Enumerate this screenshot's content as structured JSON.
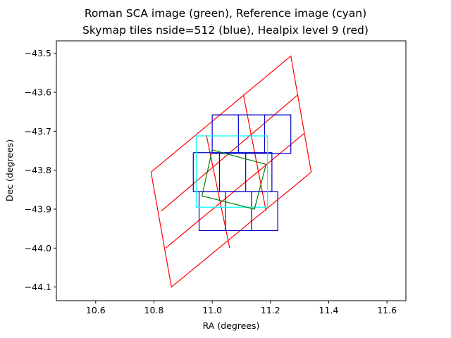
{
  "chart_data": {
    "type": "line",
    "title_line1": "Roman SCA image (green), Reference image (cyan)",
    "title_line2": "Skymap tiles nside=512 (blue), Healpix level 9 (red)",
    "xlabel": "RA (degrees)",
    "ylabel": "Dec (degrees)",
    "xlim": [
      10.465,
      11.665
    ],
    "ylim": [
      -44.135,
      -43.468
    ],
    "xticks": [
      10.6,
      10.8,
      11.0,
      11.2,
      11.4,
      11.6
    ],
    "xtick_labels": [
      "10.6",
      "10.8",
      "11.0",
      "11.2",
      "11.4",
      "11.6"
    ],
    "yticks": [
      -43.5,
      -43.6,
      -43.7,
      -43.8,
      -43.9,
      -44.0,
      -44.1
    ],
    "ytick_labels": [
      "−43.5",
      "−43.6",
      "−43.7",
      "−43.8",
      "−43.9",
      "−44.0",
      "−44.1"
    ],
    "grid": false,
    "colors": {
      "healpix": "#ff0000",
      "skymap": "#0000cc",
      "reference": "#00ffff",
      "sca": "#007f00"
    },
    "series": [
      {
        "group": "healpix",
        "color": "#ff0000",
        "points": [
          [
            10.79,
            -43.805
          ],
          [
            10.86,
            -44.1
          ],
          [
            11.34,
            -43.805
          ],
          [
            11.27,
            -43.507
          ],
          [
            10.79,
            -43.805
          ]
        ]
      },
      {
        "group": "healpix",
        "color": "#ff0000",
        "points": [
          [
            10.825,
            -43.905
          ],
          [
            11.295,
            -43.606
          ]
        ]
      },
      {
        "group": "healpix",
        "color": "#ff0000",
        "points": [
          [
            10.84,
            -44.0
          ],
          [
            11.315,
            -43.706
          ]
        ]
      },
      {
        "group": "healpix",
        "color": "#ff0000",
        "points": [
          [
            11.107,
            -43.606
          ],
          [
            11.185,
            -43.905
          ]
        ]
      },
      {
        "group": "healpix",
        "color": "#ff0000",
        "points": [
          [
            10.98,
            -43.71
          ],
          [
            11.06,
            -44.0
          ]
        ]
      },
      {
        "group": "skymap",
        "color": "#0000cc",
        "points": [
          [
            11.0,
            -43.658
          ],
          [
            11.27,
            -43.658
          ],
          [
            11.27,
            -43.757
          ],
          [
            11.0,
            -43.757
          ],
          [
            11.0,
            -43.658
          ]
        ]
      },
      {
        "group": "skymap",
        "color": "#0000cc",
        "points": [
          [
            11.09,
            -43.658
          ],
          [
            11.09,
            -43.757
          ]
        ]
      },
      {
        "group": "skymap",
        "color": "#0000cc",
        "points": [
          [
            11.18,
            -43.658
          ],
          [
            11.18,
            -43.757
          ]
        ]
      },
      {
        "group": "skymap",
        "color": "#0000cc",
        "points": [
          [
            10.935,
            -43.755
          ],
          [
            11.205,
            -43.755
          ],
          [
            11.205,
            -43.855
          ],
          [
            10.935,
            -43.855
          ],
          [
            10.935,
            -43.755
          ]
        ]
      },
      {
        "group": "skymap",
        "color": "#0000cc",
        "points": [
          [
            11.025,
            -43.755
          ],
          [
            11.025,
            -43.855
          ]
        ]
      },
      {
        "group": "skymap",
        "color": "#0000cc",
        "points": [
          [
            11.115,
            -43.755
          ],
          [
            11.115,
            -43.855
          ]
        ]
      },
      {
        "group": "skymap",
        "color": "#0000cc",
        "points": [
          [
            10.955,
            -43.855
          ],
          [
            11.225,
            -43.855
          ],
          [
            11.225,
            -43.955
          ],
          [
            10.955,
            -43.955
          ],
          [
            10.955,
            -43.855
          ]
        ]
      },
      {
        "group": "skymap",
        "color": "#0000cc",
        "points": [
          [
            11.045,
            -43.855
          ],
          [
            11.045,
            -43.955
          ]
        ]
      },
      {
        "group": "skymap",
        "color": "#0000cc",
        "points": [
          [
            11.135,
            -43.855
          ],
          [
            11.135,
            -43.955
          ]
        ]
      },
      {
        "group": "reference",
        "color": "#00ffff",
        "points": [
          [
            10.945,
            -43.712
          ],
          [
            11.19,
            -43.712
          ],
          [
            11.19,
            -43.895
          ],
          [
            10.945,
            -43.895
          ],
          [
            10.945,
            -43.712
          ]
        ]
      },
      {
        "group": "sca",
        "color": "#007f00",
        "points": [
          [
            11.0,
            -43.748
          ],
          [
            11.185,
            -43.785
          ],
          [
            11.145,
            -43.9
          ],
          [
            10.965,
            -43.866
          ],
          [
            11.0,
            -43.748
          ]
        ]
      }
    ]
  }
}
